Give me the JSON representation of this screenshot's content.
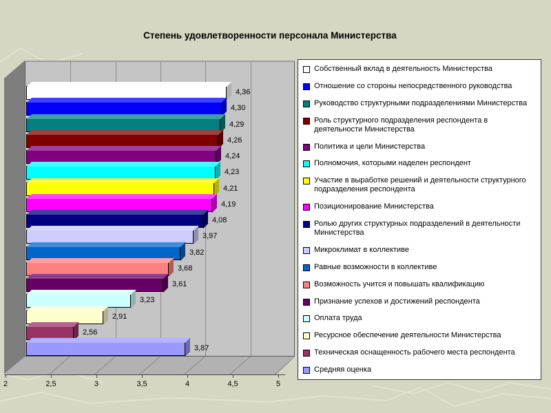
{
  "slide": {
    "background_color": "#D6D7C3",
    "texture_line_color": "#E4E5D2"
  },
  "chart_data": {
    "type": "bar",
    "orientation": "horizontal",
    "style": "3d",
    "title": "Степень удовлетворенности персонала Министерства",
    "xlabel": "",
    "ylabel": "",
    "xlim": [
      2,
      5
    ],
    "grid": true,
    "legend_position": "right",
    "wall_color": "#C5C5C5",
    "x_ticks": [
      {
        "value": 2,
        "label": "2"
      },
      {
        "value": 2.5,
        "label": "2,5"
      },
      {
        "value": 3,
        "label": "3"
      },
      {
        "value": 3.5,
        "label": "3,5"
      },
      {
        "value": 4,
        "label": "4"
      },
      {
        "value": 4.5,
        "label": "4,5"
      },
      {
        "value": 5,
        "label": "5"
      }
    ],
    "series": [
      {
        "label": "Собственный вклад в деятельность Министерства",
        "value": 4.36,
        "display": "4,36",
        "color": "#FFFFFF"
      },
      {
        "label": "Отношение со стороны непосредственного руководства",
        "value": 4.3,
        "display": "4,30",
        "color": "#0000FF"
      },
      {
        "label": "Руководство структурными подразделениями Министерства",
        "value": 4.29,
        "display": "4,29",
        "color": "#008080"
      },
      {
        "label": "Роль структурного подразделения респондента в деятельности Министерства",
        "value": 4.26,
        "display": "4,26",
        "color": "#800000"
      },
      {
        "label": "Политика и цели Министерства",
        "value": 4.24,
        "display": "4,24",
        "color": "#800080"
      },
      {
        "label": "Полномочия, которыми наделен респондент",
        "value": 4.23,
        "display": "4,23",
        "color": "#00FFFF"
      },
      {
        "label": "Участие в выработке решений и деятельности структурного подразделения респондента",
        "value": 4.21,
        "display": "4,21",
        "color": "#FFFF00"
      },
      {
        "label": "Позиционирование Министерства",
        "value": 4.19,
        "display": "4,19",
        "color": "#FF00FF"
      },
      {
        "label": "Ролью других структурных подразделений в деятельности Министерства",
        "value": 4.08,
        "display": "4,08",
        "color": "#000080"
      },
      {
        "label": "Микроклимат в коллективе",
        "value": 3.97,
        "display": "3,97",
        "color": "#CCCCFF"
      },
      {
        "label": "Равные возможности в коллективе",
        "value": 3.82,
        "display": "3,82",
        "color": "#0066CC"
      },
      {
        "label": "Возможность учится и повышать квалификацию",
        "value": 3.68,
        "display": "3,68",
        "color": "#FF8080"
      },
      {
        "label": "Признание успехов и достижений респондента",
        "value": 3.61,
        "display": "3,61",
        "color": "#660066"
      },
      {
        "label": "Оплата труда",
        "value": 3.23,
        "display": "3,23",
        "color": "#CCFFFF"
      },
      {
        "label": "Ресурсное обеспечение деятельности Министерства",
        "value": 2.91,
        "display": "2,91",
        "color": "#FFFFCC"
      },
      {
        "label": "Техническая оснащенность рабочего места респондента",
        "value": 2.56,
        "display": "2,56",
        "color": "#993366"
      },
      {
        "label": "Средняя оценка",
        "value": 3.87,
        "display": "3,87",
        "color": "#9999FF"
      }
    ]
  }
}
